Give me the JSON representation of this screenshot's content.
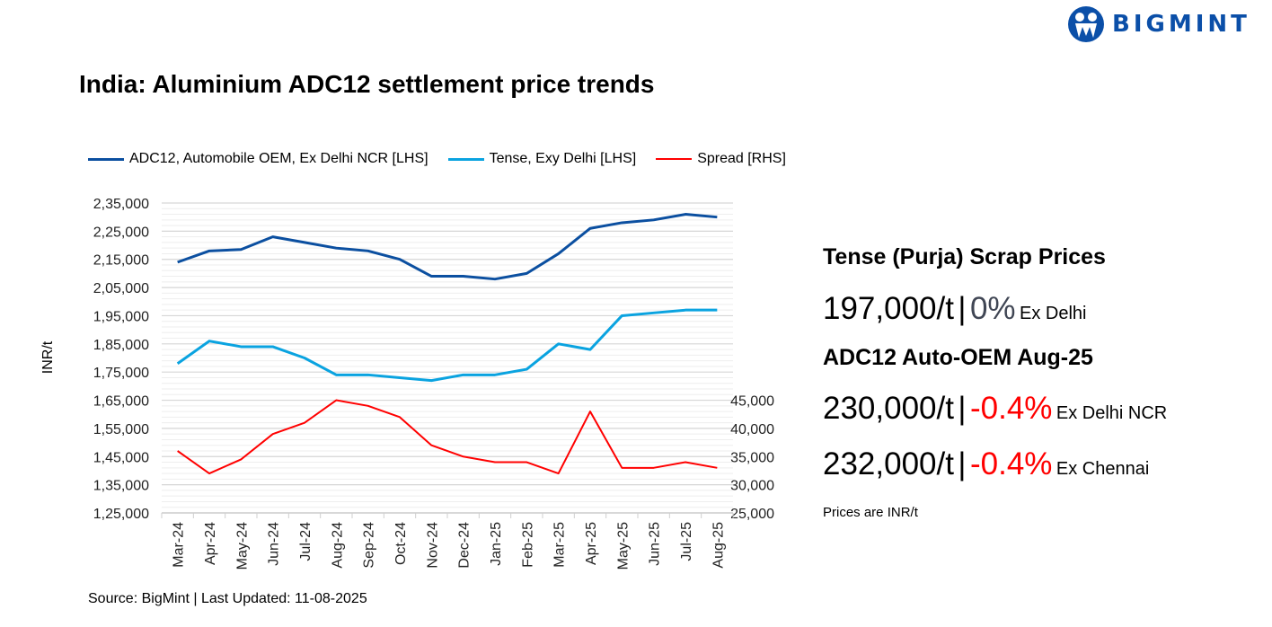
{
  "brand": {
    "name": "BIGMINT",
    "color": "#0b4fa8"
  },
  "title": "India: Aluminium ADC12 settlement price trends",
  "source": "Source: BigMint | Last Updated: 11-08-2025",
  "panel": {
    "tense_heading": "Tense (Purja) Scrap Prices",
    "tense_price": "197,000/t",
    "tense_sep": "|",
    "tense_change": "0%",
    "tense_location": "Ex Delhi",
    "adc_heading": "ADC12 Auto-OEM Aug-25",
    "adc1_price": "230,000/t",
    "adc1_sep": "|",
    "adc1_change": "-0.4%",
    "adc1_location": "Ex Delhi NCR",
    "adc2_price": "232,000/t",
    "adc2_sep": "|",
    "adc2_change": "-0.4%",
    "adc2_location": "Ex Chennai",
    "note": "Prices are INR/t",
    "neutral_color": "#404654",
    "negative_color": "#ff0000"
  },
  "chart_data": {
    "type": "line",
    "title": "India: Aluminium ADC12 settlement price trends",
    "ylabel": "INR/t",
    "categories": [
      "Mar-24",
      "Apr-24",
      "May-24",
      "Jun-24",
      "Jul-24",
      "Aug-24",
      "Sep-24",
      "Oct-24",
      "Nov-24",
      "Dec-24",
      "Jan-25",
      "Feb-25",
      "Mar-25",
      "Apr-25",
      "May-25",
      "Jun-25",
      "Jul-25",
      "Aug-25"
    ],
    "ylim": [
      125000,
      235000
    ],
    "yticks": [
      "2,35,000",
      "2,25,000",
      "2,15,000",
      "2,05,000",
      "1,95,000",
      "1,85,000",
      "1,75,000",
      "1,65,000",
      "1,55,000",
      "1,45,000",
      "1,35,000",
      "1,25,000"
    ],
    "y2lim": [
      25000,
      80000
    ],
    "y2ticks": [
      "45,000",
      "40,000",
      "35,000",
      "30,000",
      "25,000"
    ],
    "grid": true,
    "legend_position": "top",
    "series": [
      {
        "name": "ADC12, Automobile OEM, Ex Delhi NCR [LHS]",
        "axis": "left",
        "color": "#0b4fa0",
        "values": [
          214000,
          218000,
          218500,
          223000,
          221000,
          219000,
          218000,
          215000,
          209000,
          209000,
          208000,
          210000,
          217000,
          226000,
          228000,
          229000,
          231000,
          230000
        ]
      },
      {
        "name": "Tense, Exy Delhi [LHS]",
        "axis": "left",
        "color": "#0aa3e0",
        "values": [
          178000,
          186000,
          184000,
          184000,
          180000,
          174000,
          174000,
          173000,
          172000,
          174000,
          174000,
          176000,
          185000,
          183000,
          195000,
          196000,
          197000,
          197000
        ]
      },
      {
        "name": "Spread [RHS]",
        "axis": "right",
        "color": "#ff0000",
        "values": [
          36000,
          32000,
          34500,
          39000,
          41000,
          45000,
          44000,
          42000,
          37000,
          35000,
          34000,
          34000,
          32000,
          43000,
          33000,
          33000,
          34000,
          33000
        ]
      }
    ]
  }
}
